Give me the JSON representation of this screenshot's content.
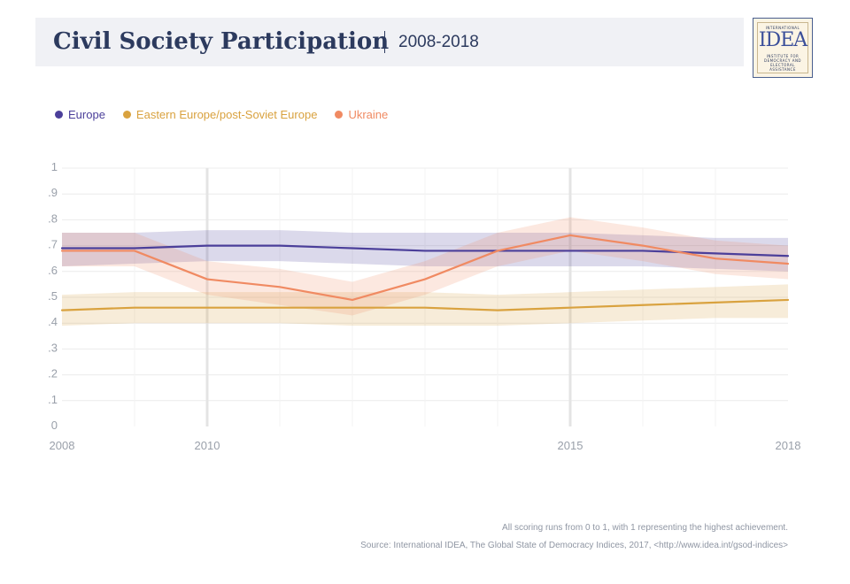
{
  "header": {
    "title": "Civil Society Participation",
    "subtitle": "2008-2018"
  },
  "logo": {
    "word": "IDEA",
    "top_text": "INTERNATIONAL",
    "bottom_text": "INSTITUTE FOR DEMOCRACY AND ELECTORAL ASSISTANCE"
  },
  "colors": {
    "europe": "#4b3f9a",
    "eastern": "#d9a23f",
    "ukraine": "#f08a62"
  },
  "chart_data": {
    "type": "line",
    "title": "Civil Society Participation",
    "xlabel": "",
    "ylabel": "",
    "xlim": [
      2008,
      2018
    ],
    "ylim": [
      0,
      1
    ],
    "grid": true,
    "legend_position": "top-left",
    "x_ticks": [
      "2008",
      "2010",
      "2015",
      "2018"
    ],
    "y_ticks": [
      "0",
      ".1",
      ".2",
      ".3",
      ".4",
      ".5",
      ".6",
      ".7",
      ".8",
      ".9",
      "1"
    ],
    "x": [
      2008,
      2009,
      2010,
      2011,
      2012,
      2013,
      2014,
      2015,
      2016,
      2017,
      2018
    ],
    "series": [
      {
        "name": "Europe",
        "color": "#4b3f9a",
        "values": [
          0.69,
          0.69,
          0.7,
          0.7,
          0.69,
          0.68,
          0.68,
          0.68,
          0.68,
          0.67,
          0.66
        ],
        "lower": [
          0.62,
          0.63,
          0.64,
          0.64,
          0.63,
          0.62,
          0.62,
          0.62,
          0.62,
          0.61,
          0.6
        ],
        "upper": [
          0.75,
          0.75,
          0.76,
          0.76,
          0.75,
          0.75,
          0.75,
          0.75,
          0.74,
          0.73,
          0.73
        ]
      },
      {
        "name": "Eastern Europe/post-Soviet Europe",
        "color": "#d9a23f",
        "values": [
          0.45,
          0.46,
          0.46,
          0.46,
          0.46,
          0.46,
          0.45,
          0.46,
          0.47,
          0.48,
          0.49
        ],
        "lower": [
          0.39,
          0.4,
          0.4,
          0.4,
          0.39,
          0.39,
          0.39,
          0.4,
          0.41,
          0.42,
          0.42
        ],
        "upper": [
          0.51,
          0.52,
          0.52,
          0.52,
          0.52,
          0.52,
          0.51,
          0.52,
          0.53,
          0.54,
          0.55
        ]
      },
      {
        "name": "Ukraine",
        "color": "#f08a62",
        "values": [
          0.68,
          0.68,
          0.57,
          0.54,
          0.49,
          0.57,
          0.68,
          0.74,
          0.7,
          0.65,
          0.63
        ],
        "lower": [
          0.62,
          0.62,
          0.51,
          0.47,
          0.43,
          0.51,
          0.62,
          0.68,
          0.64,
          0.59,
          0.57
        ],
        "upper": [
          0.75,
          0.75,
          0.64,
          0.61,
          0.56,
          0.64,
          0.75,
          0.81,
          0.77,
          0.72,
          0.7
        ]
      }
    ]
  },
  "footer": {
    "note": "All scoring runs from 0 to 1, with 1 representing the highest achievement.",
    "source": "Source: International IDEA, The Global State of Democracy Indices, 2017, <http://www.idea.int/gsod-indices>"
  }
}
